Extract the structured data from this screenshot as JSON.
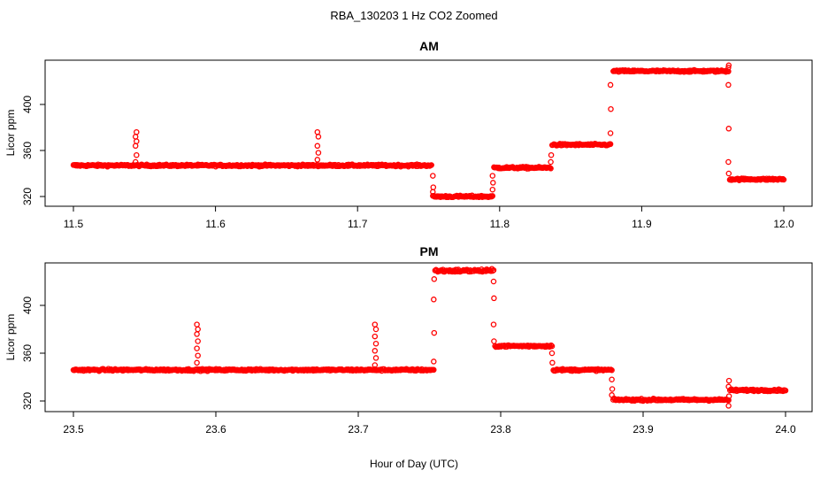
{
  "figure": {
    "title": "RBA_130203  1 Hz CO2 Zoomed",
    "xlabel": "Hour of Day (UTC)"
  },
  "chart_data": [
    {
      "type": "scatter",
      "title": "AM",
      "xlabel": "",
      "ylabel": "Licor ppm",
      "xlim": [
        11.5,
        12.0
      ],
      "ylim": [
        316,
        436
      ],
      "xticks": [
        "11.5",
        "11.6",
        "11.7",
        "11.8",
        "11.9",
        "12.0"
      ],
      "yticks": [
        "320",
        "360",
        "400"
      ],
      "color": "#ff0000",
      "marker": "open-circle",
      "segments": [
        {
          "x0": 11.5,
          "x1": 11.752,
          "y": 347,
          "noise": 0.8
        },
        {
          "x0": 11.753,
          "x1": 11.795,
          "y": 320,
          "noise": 0.8
        },
        {
          "x0": 11.796,
          "x1": 11.836,
          "y": 345,
          "noise": 0.8
        },
        {
          "x0": 11.837,
          "x1": 11.878,
          "y": 365,
          "noise": 0.8
        },
        {
          "x0": 11.88,
          "x1": 11.961,
          "y": 429,
          "noise": 0.8
        },
        {
          "x0": 11.962,
          "x1": 12.0,
          "y": 335,
          "noise": 0.8
        }
      ],
      "spikes": [
        {
          "x": 11.544,
          "y": [
            350,
            356,
            364,
            368,
            372,
            376
          ]
        },
        {
          "x": 11.672,
          "y": [
            352,
            358,
            364,
            372,
            376
          ]
        }
      ],
      "transitions": [
        {
          "x": 11.753,
          "y": [
            338,
            328,
            324
          ]
        },
        {
          "x": 11.795,
          "y": [
            326,
            332,
            338
          ]
        },
        {
          "x": 11.836,
          "y": [
            350,
            356
          ]
        },
        {
          "x": 11.878,
          "y": [
            375,
            396,
            417
          ]
        },
        {
          "x": 11.961,
          "y": [
            432,
            434,
            417,
            379,
            350,
            340
          ]
        }
      ]
    },
    {
      "type": "scatter",
      "title": "PM",
      "xlabel": "",
      "ylabel": "Licor ppm",
      "xlim": [
        23.5,
        24.0
      ],
      "ylim": [
        311,
        436
      ],
      "xticks": [
        "23.5",
        "23.6",
        "23.7",
        "23.8",
        "23.9",
        "24.0"
      ],
      "yticks": [
        "320",
        "360",
        "400"
      ],
      "color": "#ff0000",
      "marker": "open-circle",
      "segments": [
        {
          "x0": 23.5,
          "x1": 23.753,
          "y": 346,
          "noise": 0.8
        },
        {
          "x0": 23.754,
          "x1": 23.795,
          "y": 429,
          "noise": 1.2
        },
        {
          "x0": 23.796,
          "x1": 23.836,
          "y": 366,
          "noise": 0.8
        },
        {
          "x0": 23.837,
          "x1": 23.878,
          "y": 346,
          "noise": 0.8
        },
        {
          "x0": 23.879,
          "x1": 23.96,
          "y": 321,
          "noise": 0.8
        },
        {
          "x0": 23.961,
          "x1": 24.0,
          "y": 329,
          "noise": 0.8
        }
      ],
      "spikes": [
        {
          "x": 23.587,
          "y": [
            352,
            358,
            364,
            370,
            376,
            380,
            384
          ]
        },
        {
          "x": 23.712,
          "y": [
            350,
            356,
            362,
            368,
            374,
            380,
            384
          ]
        }
      ],
      "transitions": [
        {
          "x": 23.753,
          "y": [
            353,
            377,
            405,
            422
          ]
        },
        {
          "x": 23.795,
          "y": [
            420,
            406,
            384,
            370
          ]
        },
        {
          "x": 23.836,
          "y": [
            360,
            352
          ]
        },
        {
          "x": 23.878,
          "y": [
            338,
            330,
            325
          ]
        },
        {
          "x": 23.96,
          "y": [
            316,
            324,
            332,
            337
          ]
        }
      ]
    }
  ]
}
